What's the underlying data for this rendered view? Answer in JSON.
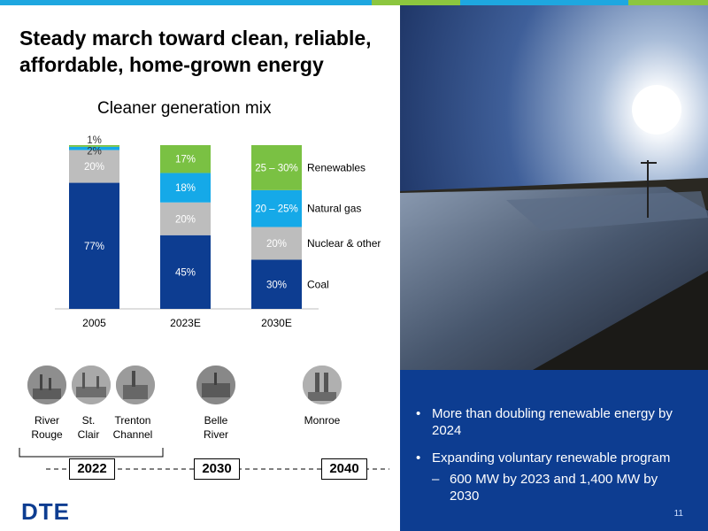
{
  "colors": {
    "coal": "#0d3d91",
    "nuclear": "#bdbdbd",
    "gas": "#15a9e8",
    "renewables": "#7ac143",
    "topbar_blue": "#1ea7e0",
    "topbar_green": "#8cc63f",
    "panel_blue": "#0d3d91"
  },
  "title": "Steady march toward clean, reliable, affordable, home-grown energy",
  "chart_data": {
    "type": "bar",
    "stacked": true,
    "title": "Cleaner generation mix",
    "categories": [
      "2005",
      "2023E",
      "2030E"
    ],
    "series": [
      {
        "name": "Coal",
        "values": [
          77,
          45,
          30
        ],
        "labels": [
          "77%",
          "45%",
          "30%"
        ]
      },
      {
        "name": "Nuclear & other",
        "values": [
          20,
          20,
          20
        ],
        "labels": [
          "20%",
          "20%",
          "20%"
        ]
      },
      {
        "name": "Natural gas",
        "values": [
          2,
          18,
          22.5
        ],
        "labels": [
          "2%",
          "18%",
          "20 – 25%"
        ]
      },
      {
        "name": "Renewables",
        "values": [
          1,
          17,
          27.5
        ],
        "labels": [
          "1%",
          "17%",
          "25 – 30%"
        ]
      }
    ],
    "ylim": [
      0,
      100
    ],
    "grid": false,
    "legend": "right"
  },
  "plants": [
    {
      "label": "River Rouge"
    },
    {
      "label": "St. Clair"
    },
    {
      "label": "Trenton Channel"
    },
    {
      "label": "Belle River"
    },
    {
      "label": "Monroe"
    }
  ],
  "timeline": {
    "years": [
      "2022",
      "2030",
      "2040"
    ]
  },
  "bullets": [
    "More than doubling renewable energy by 2024",
    "Expanding voluntary renewable program"
  ],
  "sub_bullet": "600 MW by 2023 and 1,400 MW by 2030",
  "logo": "DTE",
  "page_number": "11"
}
